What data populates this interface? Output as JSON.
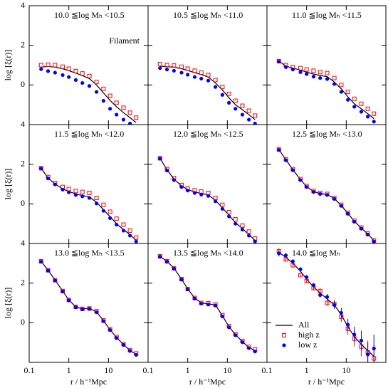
{
  "chart_data": [
    {
      "type": "line",
      "title": "10.0 ≦log Mₕ <10.5",
      "annotation": "Filament",
      "ylabel": "log [ξ(r)]",
      "x": [
        0.2,
        0.3,
        0.45,
        0.7,
        1,
        1.5,
        2.2,
        3.3,
        5,
        7.5,
        11,
        16,
        24,
        35,
        50
      ],
      "xlim": [
        0.1,
        100
      ],
      "xticks": [
        0.1,
        1,
        10
      ],
      "ylim": [
        -2,
        4
      ],
      "yticks": [
        0,
        2,
        4
      ],
      "xscale": "log",
      "series": [
        {
          "style": "line",
          "color": "#000000",
          "values": [
            0.9,
            0.93,
            0.9,
            0.82,
            0.72,
            0.6,
            0.47,
            0.32,
            0.0,
            -0.4,
            -0.78,
            -1.1,
            -1.4,
            -1.65,
            -1.9
          ]
        },
        {
          "style": "square",
          "color": "#ff0000",
          "values": [
            1.0,
            1.02,
            1.0,
            0.92,
            0.82,
            0.7,
            0.58,
            0.45,
            0.15,
            -0.2,
            -0.55,
            -0.9,
            -1.15,
            -1.4,
            -1.65
          ]
        },
        {
          "style": "circle",
          "color": "#0000ff",
          "values": [
            0.8,
            0.7,
            0.62,
            0.5,
            0.4,
            0.25,
            0.1,
            -0.05,
            -0.35,
            -0.8,
            -1.2,
            -1.5,
            -1.75,
            -1.95,
            null
          ]
        }
      ]
    },
    {
      "type": "line",
      "title": "10.5 ≦log Mₕ <11.0",
      "x": [
        0.2,
        0.3,
        0.45,
        0.7,
        1,
        1.5,
        2.2,
        3.3,
        5,
        7.5,
        11,
        16,
        24,
        35,
        50
      ],
      "xlim": [
        0.1,
        100
      ],
      "xticks": [
        0.1,
        1,
        10
      ],
      "ylim": [
        -2,
        4
      ],
      "yticks": [
        0,
        2,
        4
      ],
      "xscale": "log",
      "series": [
        {
          "style": "line",
          "color": "#000000",
          "values": [
            0.95,
            0.92,
            0.9,
            0.82,
            0.73,
            0.62,
            0.52,
            0.4,
            0.1,
            -0.25,
            -0.65,
            -1.0,
            -1.25,
            -1.5,
            -1.75
          ]
        },
        {
          "style": "square",
          "color": "#ff0000",
          "values": [
            1.05,
            1.0,
            0.98,
            0.92,
            0.82,
            0.72,
            0.62,
            0.5,
            0.25,
            -0.1,
            -0.45,
            -0.8,
            -1.05,
            -1.3,
            -1.55
          ]
        },
        {
          "style": "circle",
          "color": "#0000ff",
          "values": [
            0.85,
            0.78,
            0.72,
            0.62,
            0.52,
            0.4,
            0.32,
            0.22,
            -0.1,
            -0.5,
            -0.9,
            -1.2,
            -1.5,
            -1.75,
            -1.95
          ]
        }
      ]
    },
    {
      "type": "line",
      "title": "11.0 ≦log Mₕ <11.5",
      "x": [
        0.2,
        0.3,
        0.45,
        0.7,
        1,
        1.5,
        2.2,
        3.3,
        5,
        7.5,
        11,
        16,
        24,
        35,
        50
      ],
      "xlim": [
        0.1,
        100
      ],
      "xticks": [
        0.1,
        1,
        10
      ],
      "ylim": [
        -2,
        4
      ],
      "yticks": [
        0,
        2,
        4
      ],
      "xscale": "log",
      "series": [
        {
          "style": "line",
          "color": "#000000",
          "values": [
            1.2,
            0.95,
            0.85,
            0.75,
            0.65,
            0.55,
            0.48,
            0.42,
            0.15,
            -0.2,
            -0.6,
            -0.95,
            -1.2,
            -1.45,
            -1.7
          ]
        },
        {
          "style": "square",
          "color": "#ff0000",
          "values": [
            1.2,
            1.0,
            0.9,
            0.85,
            0.78,
            0.72,
            0.65,
            0.6,
            0.35,
            0.0,
            -0.35,
            -0.7,
            -0.95,
            -1.2,
            -1.45
          ]
        },
        {
          "style": "circle",
          "color": "#0000ff",
          "values": [
            1.18,
            0.9,
            0.78,
            0.65,
            0.55,
            0.42,
            0.35,
            0.3,
            0.05,
            -0.35,
            -0.75,
            -1.1,
            -1.35,
            -1.6,
            -1.85
          ]
        }
      ]
    },
    {
      "type": "line",
      "title": "11.5 ≦log Mₕ <12.0",
      "ylabel": "log [ξ(r)]",
      "x": [
        0.2,
        0.3,
        0.45,
        0.7,
        1,
        1.5,
        2.2,
        3.3,
        5,
        7.5,
        11,
        16,
        24,
        35,
        50
      ],
      "xlim": [
        0.1,
        100
      ],
      "xticks": [
        0.1,
        1,
        10
      ],
      "ylim": [
        -2,
        4
      ],
      "yticks": [
        0,
        2,
        4
      ],
      "xscale": "log",
      "series": [
        {
          "style": "line",
          "color": "#000000",
          "values": [
            1.8,
            1.3,
            1.0,
            0.75,
            0.62,
            0.5,
            0.42,
            0.35,
            0.08,
            -0.3,
            -0.65,
            -1.0,
            -1.3,
            -1.55,
            -1.85
          ]
        },
        {
          "style": "square",
          "color": "#ff0000",
          "values": [
            1.8,
            1.35,
            1.05,
            0.85,
            0.75,
            0.65,
            0.6,
            0.55,
            0.3,
            -0.05,
            -0.4,
            -0.75,
            -1.05,
            -1.35,
            -1.7
          ]
        },
        {
          "style": "circle",
          "color": "#0000ff",
          "values": [
            1.78,
            1.28,
            0.98,
            0.72,
            0.58,
            0.45,
            0.38,
            0.3,
            0.02,
            -0.35,
            -0.72,
            -1.05,
            -1.35,
            -1.6,
            -1.9
          ]
        }
      ]
    },
    {
      "type": "line",
      "title": "12.0 ≦log Mₕ <12.5",
      "x": [
        0.2,
        0.3,
        0.45,
        0.7,
        1,
        1.5,
        2.2,
        3.3,
        5,
        7.5,
        11,
        16,
        24,
        35,
        50
      ],
      "xlim": [
        0.1,
        100
      ],
      "xticks": [
        0.1,
        1,
        10
      ],
      "ylim": [
        -2,
        4
      ],
      "yticks": [
        0,
        2,
        4
      ],
      "xscale": "log",
      "series": [
        {
          "style": "line",
          "color": "#000000",
          "values": [
            2.3,
            1.72,
            1.25,
            0.9,
            0.72,
            0.6,
            0.52,
            0.45,
            0.18,
            -0.2,
            -0.58,
            -0.95,
            -1.25,
            -1.55,
            -1.85
          ]
        },
        {
          "style": "square",
          "color": "#ff0000",
          "values": [
            2.3,
            1.75,
            1.3,
            0.95,
            0.78,
            0.68,
            0.62,
            0.55,
            0.3,
            -0.05,
            -0.42,
            -0.78,
            -1.1,
            -1.4,
            -1.75
          ]
        },
        {
          "style": "circle",
          "color": "#0000ff",
          "values": [
            2.28,
            1.68,
            1.2,
            0.85,
            0.67,
            0.55,
            0.47,
            0.4,
            0.13,
            -0.25,
            -0.63,
            -1.0,
            -1.3,
            -1.6,
            -1.9
          ]
        }
      ]
    },
    {
      "type": "line",
      "title": "12.5 ≦log Mₕ <13.0",
      "x": [
        0.2,
        0.3,
        0.45,
        0.7,
        1,
        1.5,
        2.2,
        3.3,
        5,
        7.5,
        11,
        16,
        24,
        35,
        50
      ],
      "xlim": [
        0.1,
        100
      ],
      "xticks": [
        0.1,
        1,
        10
      ],
      "ylim": [
        -2,
        4
      ],
      "yticks": [
        0,
        2,
        4
      ],
      "xscale": "log",
      "series": [
        {
          "style": "line",
          "color": "#000000",
          "values": [
            2.74,
            2.23,
            1.72,
            1.22,
            0.87,
            0.62,
            0.52,
            0.47,
            0.27,
            -0.08,
            -0.48,
            -0.88,
            -1.22,
            -1.52,
            -1.85
          ]
        },
        {
          "style": "square",
          "color": "#ff0000",
          "values": [
            2.75,
            2.25,
            1.75,
            1.25,
            0.9,
            0.65,
            0.55,
            0.5,
            0.3,
            -0.05,
            -0.45,
            -0.85,
            -1.2,
            -1.5,
            -1.85
          ]
        },
        {
          "style": "circle",
          "color": "#0000ff",
          "values": [
            2.72,
            2.2,
            1.7,
            1.2,
            0.85,
            0.6,
            0.5,
            0.45,
            0.25,
            -0.1,
            -0.5,
            -0.9,
            -1.25,
            -1.55,
            -1.9
          ]
        }
      ]
    },
    {
      "type": "line",
      "title": "13.0 ≦log Mₕ <13.5",
      "ylabel": "log [ξ(r)]",
      "xlabel": "r / h⁻¹Mpc",
      "x": [
        0.2,
        0.3,
        0.45,
        0.7,
        1,
        1.5,
        2.2,
        3.3,
        5,
        7.5,
        11,
        16,
        24,
        35,
        50
      ],
      "xlim": [
        0.1,
        100
      ],
      "xticks": [
        0.1,
        1,
        10
      ],
      "ylim": [
        -2,
        4
      ],
      "yticks": [
        0,
        2,
        4
      ],
      "xscale": "log",
      "series": [
        {
          "style": "line",
          "color": "#000000",
          "values": [
            3.1,
            2.65,
            2.15,
            1.6,
            1.15,
            0.8,
            0.7,
            0.72,
            0.55,
            0.1,
            -0.35,
            -0.75,
            -1.1,
            -1.4,
            -1.6
          ]
        },
        {
          "style": "square",
          "color": "#ff0000",
          "values": [
            3.1,
            2.65,
            2.15,
            1.6,
            1.15,
            0.8,
            0.7,
            0.72,
            0.58,
            0.12,
            -0.33,
            -0.72,
            -1.08,
            -1.38,
            -1.55
          ]
        },
        {
          "style": "circle",
          "color": "#0000ff",
          "values": [
            3.08,
            2.63,
            2.13,
            1.58,
            1.13,
            0.78,
            0.68,
            0.7,
            0.53,
            0.08,
            -0.37,
            -0.77,
            -1.12,
            -1.42,
            -1.62
          ]
        }
      ]
    },
    {
      "type": "line",
      "title": "13.5 ≦log Mₕ <14.0",
      "xlabel": "r / h⁻¹Mpc",
      "x": [
        0.2,
        0.3,
        0.45,
        0.7,
        1,
        1.5,
        2.2,
        3.3,
        5,
        7.5,
        11,
        16,
        24,
        35,
        50
      ],
      "xlim": [
        0.1,
        100
      ],
      "xticks": [
        0.1,
        1,
        10
      ],
      "ylim": [
        -2,
        4
      ],
      "yticks": [
        0,
        2,
        4
      ],
      "xscale": "log",
      "series": [
        {
          "style": "line",
          "color": "#000000",
          "values": [
            3.35,
            3.1,
            2.75,
            2.2,
            1.7,
            1.25,
            1.0,
            0.95,
            0.9,
            0.35,
            -0.2,
            -0.6,
            -0.95,
            -1.25,
            -1.4
          ]
        },
        {
          "style": "square",
          "color": "#ff0000",
          "values": [
            3.35,
            3.1,
            2.75,
            2.2,
            1.7,
            1.25,
            1.0,
            0.98,
            0.92,
            0.38,
            -0.17,
            -0.57,
            -0.92,
            -1.22,
            -1.35
          ]
        },
        {
          "style": "circle",
          "color": "#0000ff",
          "values": [
            3.33,
            3.08,
            2.73,
            2.18,
            1.68,
            1.22,
            0.97,
            0.92,
            0.87,
            0.32,
            -0.23,
            -0.63,
            -0.98,
            -1.28,
            -1.45
          ]
        }
      ]
    },
    {
      "type": "line",
      "title": "14.0 ≦log Mₕ",
      "xlabel": "r / h⁻¹Mpc",
      "legend": "lower left",
      "x": [
        0.2,
        0.3,
        0.45,
        0.7,
        1,
        1.5,
        2.2,
        3.3,
        5,
        7.5,
        11,
        16,
        24,
        35,
        50
      ],
      "xlim": [
        0.1,
        100
      ],
      "xticks": [
        0.1,
        1,
        10
      ],
      "ylim": [
        -2,
        4
      ],
      "yticks": [
        0,
        2,
        4
      ],
      "xscale": "log",
      "series": [
        {
          "name": "All",
          "style": "line",
          "color": "#000000",
          "values": [
            3.55,
            3.3,
            3.0,
            2.6,
            2.2,
            1.8,
            1.5,
            1.2,
            0.9,
            0.4,
            -0.2,
            -0.7,
            -1.1,
            -1.4,
            -1.7
          ]
        },
        {
          "name": "high z",
          "style": "square",
          "color": "#ff0000",
          "values": [
            3.6,
            3.2,
            2.9,
            2.4,
            2.1,
            1.75,
            1.6,
            1.0,
            0.95,
            0.3,
            -0.3,
            -0.8,
            -1.2,
            -1.5,
            -1.8
          ],
          "errors": [
            0.15,
            0.12,
            0.1,
            0.1,
            0.1,
            0.1,
            0.12,
            0.15,
            0.2,
            0.25,
            0.3,
            0.4,
            0.5,
            0.6,
            0.7
          ]
        },
        {
          "name": "low z",
          "style": "circle",
          "color": "#0000ff",
          "values": [
            3.5,
            3.4,
            3.1,
            2.7,
            2.3,
            1.9,
            1.4,
            1.3,
            0.9,
            0.5,
            -0.1,
            -0.6,
            -0.9,
            -1.6,
            -1.3
          ],
          "errors": [
            0.15,
            0.12,
            0.1,
            0.1,
            0.1,
            0.1,
            0.12,
            0.15,
            0.2,
            0.25,
            0.3,
            0.4,
            0.5,
            0.6,
            0.7
          ]
        }
      ]
    }
  ]
}
